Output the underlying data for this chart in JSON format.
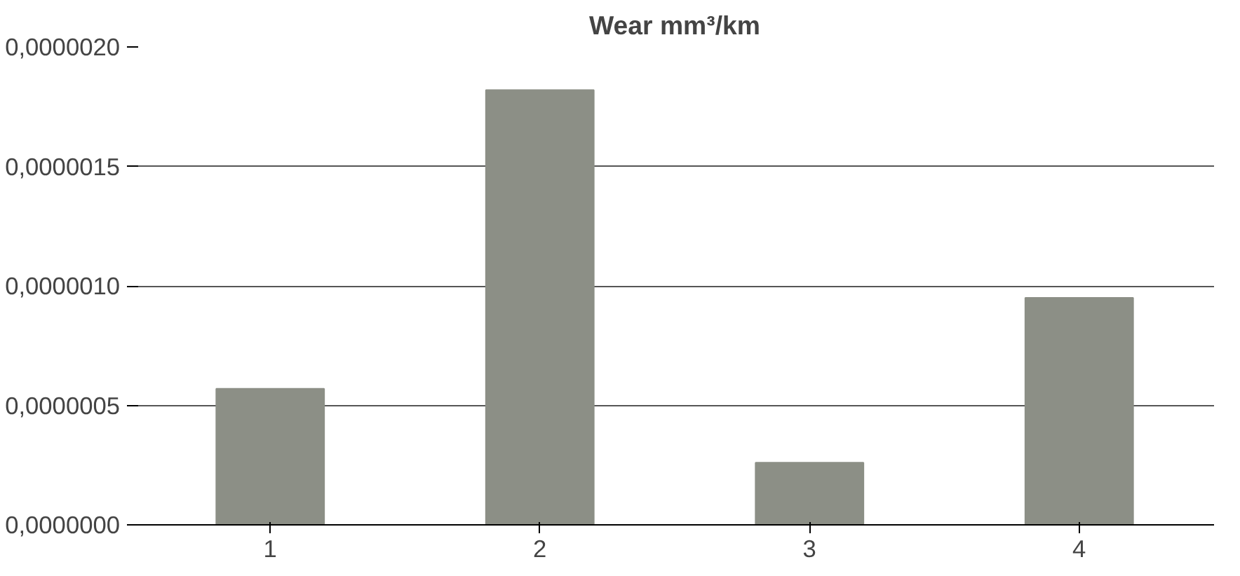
{
  "chart_data": {
    "type": "bar",
    "title": "Wear mm³/km",
    "categories": [
      "1",
      "2",
      "3",
      "4"
    ],
    "values": [
      5.7e-07,
      1.82e-06,
      2.6e-07,
      9.5e-07
    ],
    "color": "#8c8f86",
    "ylim": [
      0,
      2e-06
    ],
    "yticks": [
      {
        "value": 0,
        "label": "0,0000000"
      },
      {
        "value": 5e-07,
        "label": "0,0000005"
      },
      {
        "value": 1e-06,
        "label": "0,0000010"
      },
      {
        "value": 1.5e-06,
        "label": "0,0000015"
      },
      {
        "value": 2e-06,
        "label": "0,0000020"
      }
    ],
    "grid": "y"
  }
}
